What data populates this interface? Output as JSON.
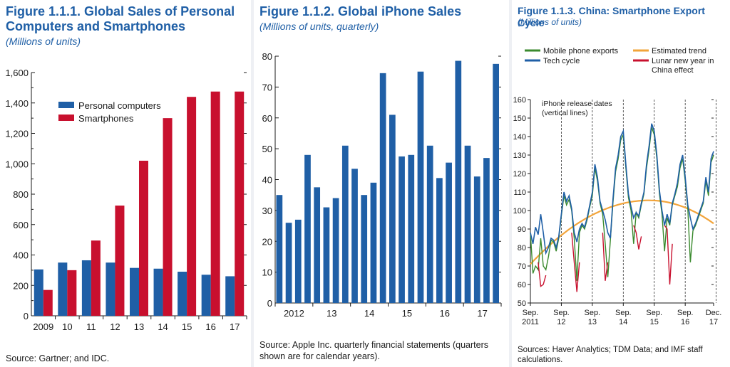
{
  "figures": [
    {
      "title_line1": "Figure 1.1.1.  Global Sales of Personal",
      "title_line2": "Computers and Smartphones",
      "subtitle": "(Millions of units)",
      "source": "Source: Gartner; and IDC."
    },
    {
      "title_line1": "Figure 1.1.2.  Global iPhone Sales",
      "subtitle": "(Millions of units, quarterly)",
      "source_line1": "Source: Apple Inc. quarterly financial statements (quarters",
      "source_line2": "shown are for calendar years)."
    },
    {
      "title_line1": "Figure 1.1.3.  China: Smartphone Export Cycle",
      "subtitle": "(Millions of units)",
      "source_line1": "Sources: Haver Analytics; TDM Data; and IMF staff",
      "source_line2": "calculations."
    }
  ],
  "chart_data": [
    {
      "type": "bar",
      "categories": [
        "2009",
        "10",
        "11",
        "12",
        "13",
        "14",
        "15",
        "16",
        "17"
      ],
      "series": [
        {
          "name": "Personal computers",
          "color": "#1f5fa6",
          "values": [
            305,
            350,
            365,
            350,
            315,
            310,
            290,
            270,
            260
          ]
        },
        {
          "name": "Smartphones",
          "color": "#c8102e",
          "values": [
            170,
            300,
            495,
            725,
            1020,
            1300,
            1440,
            1475,
            1475
          ]
        }
      ],
      "ylim": [
        0,
        1600
      ],
      "yticks": [
        0,
        200,
        400,
        600,
        800,
        1000,
        1200,
        1400,
        1600
      ],
      "ytick_labels": [
        "0",
        "200",
        "400",
        "600",
        "800",
        "1,000",
        "1,200",
        "1,400",
        "1,600"
      ],
      "legend": "top-left"
    },
    {
      "type": "bar",
      "color": "#1f5fa6",
      "x_labels": [
        "2012",
        "13",
        "14",
        "15",
        "16",
        "17"
      ],
      "values": [
        35,
        26,
        27,
        48,
        37.5,
        31,
        34,
        51,
        43.5,
        35,
        39,
        74.5,
        61,
        47.5,
        48,
        75,
        51,
        40.5,
        45.5,
        78.5,
        51,
        41,
        47,
        77.5
      ],
      "ylim": [
        0,
        80
      ],
      "yticks": [
        0,
        10,
        20,
        30,
        40,
        50,
        60,
        70,
        80
      ]
    },
    {
      "type": "line",
      "x_labels": [
        {
          "top": "Sep.",
          "bottom": "2011"
        },
        {
          "top": "Sep.",
          "bottom": "12"
        },
        {
          "top": "Sep.",
          "bottom": "13"
        },
        {
          "top": "Sep.",
          "bottom": "14"
        },
        {
          "top": "Sep.",
          "bottom": "15"
        },
        {
          "top": "Sep.",
          "bottom": "16"
        },
        {
          "top": "Dec.",
          "bottom": "17"
        }
      ],
      "ylim": [
        50,
        160
      ],
      "yticks": [
        50,
        60,
        70,
        80,
        90,
        100,
        110,
        120,
        130,
        140,
        150,
        160
      ],
      "legend": [
        {
          "name": "Mobile phone exports",
          "color": "#3a8a2e"
        },
        {
          "name": "Estimated trend",
          "color": "#f2a43a"
        },
        {
          "name": "Tech cycle",
          "color": "#1f5fa6"
        },
        {
          "name_line1": "Lunar new year in",
          "name_line2": "China effect",
          "color": "#c8102e"
        }
      ],
      "annotation_line1": "iPhone release dates",
      "annotation_line2": "(vertical lines)",
      "release_dates": [
        12,
        24,
        36,
        48,
        60,
        72
      ],
      "x_start": "Sep. 2011",
      "x_end": "Dec. 2017",
      "tech_cycle": [
        88,
        82,
        91,
        87,
        98,
        88,
        77,
        80,
        85,
        84,
        80,
        86,
        98,
        110,
        105,
        108,
        101,
        88,
        83,
        90,
        93,
        91,
        96,
        103,
        110,
        125,
        118,
        105,
        100,
        95,
        88,
        85,
        106,
        123,
        130,
        140,
        143,
        125,
        109,
        102,
        96,
        99,
        97,
        104,
        110,
        125,
        135,
        147,
        143,
        130,
        111,
        100,
        92,
        98,
        93,
        104,
        109,
        115,
        125,
        130,
        118,
        103,
        96,
        90,
        93,
        97,
        101,
        105,
        118,
        110,
        128,
        132
      ],
      "mobile_exports": [
        88,
        66,
        70,
        68,
        85,
        70,
        68,
        75,
        84,
        83,
        78,
        85,
        97,
        108,
        103,
        106,
        100,
        85,
        62,
        88,
        92,
        90,
        95,
        102,
        108,
        123,
        116,
        104,
        98,
        82,
        64,
        84,
        104,
        121,
        128,
        138,
        141,
        123,
        107,
        100,
        82,
        99,
        96,
        103,
        109,
        123,
        133,
        145,
        141,
        128,
        109,
        98,
        78,
        96,
        92,
        103,
        108,
        113,
        123,
        128,
        116,
        101,
        72,
        89,
        92,
        96,
        100,
        104,
        116,
        108,
        126,
        130
      ],
      "lunar_segments": [
        {
          "start": 3,
          "values": [
            72,
            59,
            60,
            65
          ]
        },
        {
          "start": 16,
          "values": [
            88,
            72,
            56,
            72
          ]
        },
        {
          "start": 28,
          "values": [
            88,
            62,
            72
          ]
        },
        {
          "start": 40,
          "values": [
            92,
            88,
            79,
            86
          ]
        },
        {
          "start": 52,
          "values": [
            92,
            90,
            60,
            82
          ]
        }
      ],
      "trend_start": 71,
      "trend_peak": 105.5,
      "trend_peak_index": 46,
      "trend_end": 93
    }
  ]
}
